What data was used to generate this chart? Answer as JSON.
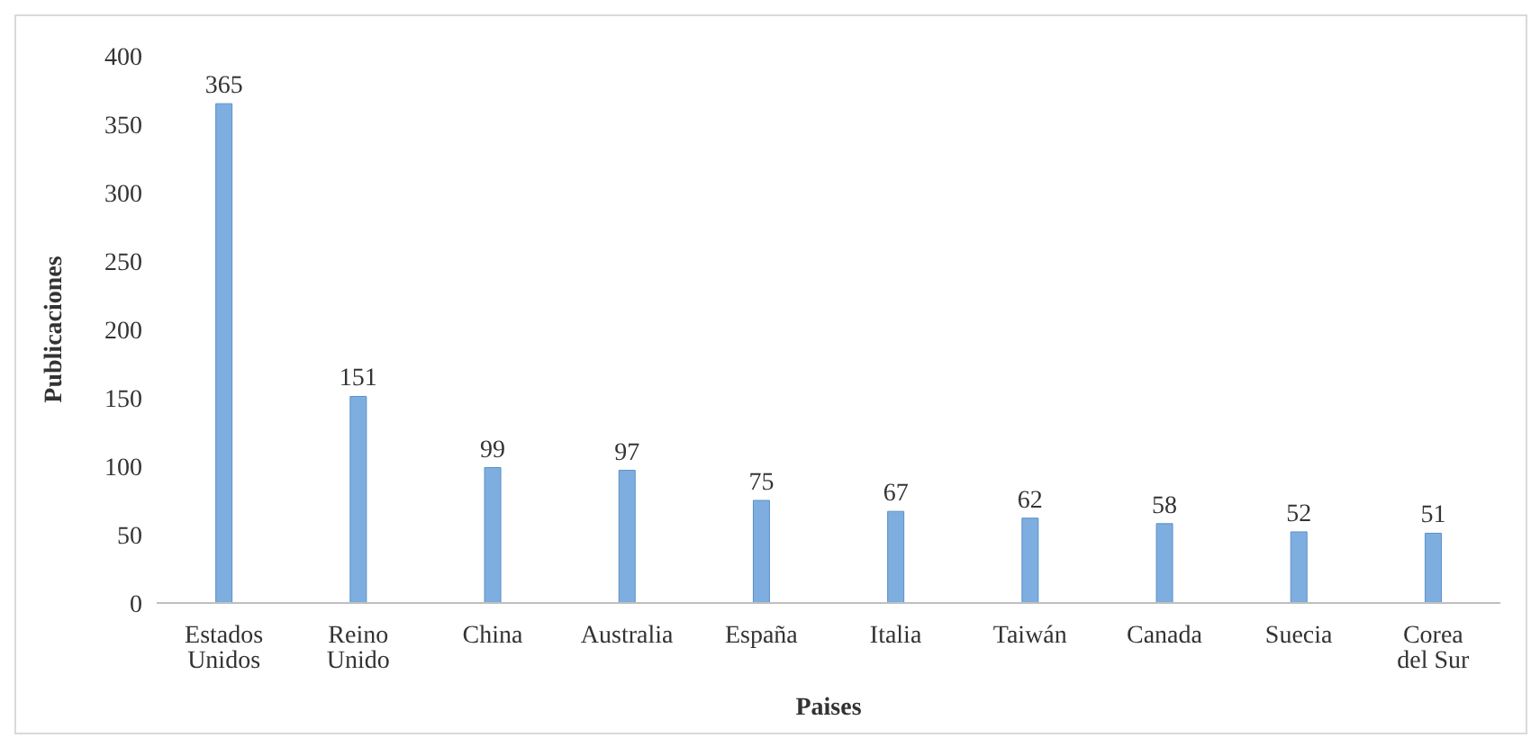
{
  "chart_data": {
    "type": "bar",
    "xlabel": "Paises",
    "ylabel": "Publicaciones",
    "categories": [
      "Estados Unidos",
      "Reino Unido",
      "China",
      "Australia",
      "España",
      "Italia",
      "Taiwán",
      "Canada",
      "Suecia",
      "Corea del Sur"
    ],
    "values": [
      365,
      151,
      99,
      97,
      75,
      67,
      62,
      58,
      52,
      51
    ],
    "color": "#7eaee0",
    "ylim": [
      0,
      400
    ],
    "yticks": [
      0,
      50,
      100,
      150,
      200,
      250,
      300,
      350,
      400
    ],
    "grid": false,
    "data_labels": true
  }
}
